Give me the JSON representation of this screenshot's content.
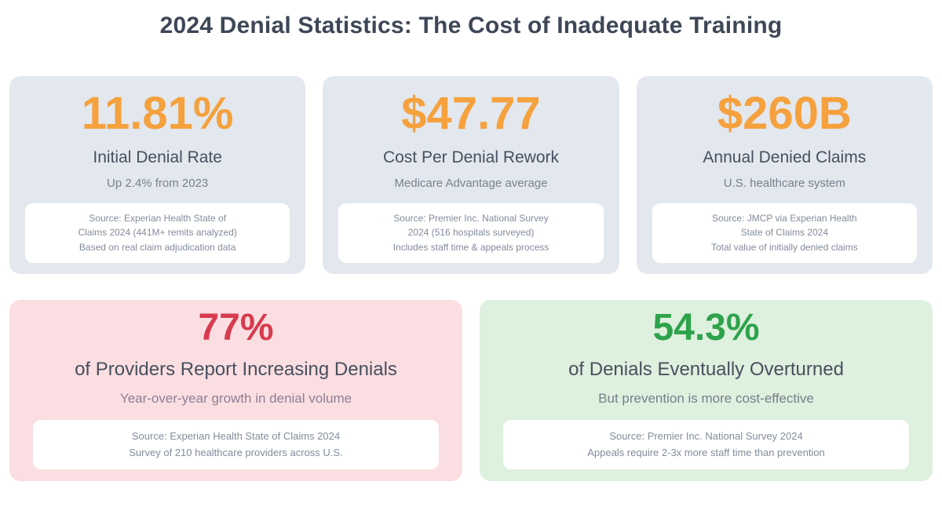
{
  "page": {
    "title": "2024 Denial Statistics: The Cost of Inadequate Training"
  },
  "colors": {
    "title_text": "#3E4757",
    "accent_orange": "#F5A13D",
    "accent_red": "#D73B4F",
    "accent_green": "#2EA34B",
    "stat_card_bg": "#E3E7EE",
    "red_card_bg": "#FBDEE1",
    "green_card_bg": "#DEF0DE",
    "source_box_bg": "#FFFFFF"
  },
  "stat_cards": [
    {
      "value": "11.81%",
      "label": "Initial Denial Rate",
      "subtitle": "Up 2.4% from 2023",
      "source_line1": "Source: Experian Health State of",
      "source_line2": "Claims 2024 (441M+ remits analyzed)",
      "source_line3": "Based on real claim adjudication data"
    },
    {
      "value": "$47.77",
      "label": "Cost Per Denial Rework",
      "subtitle": "Medicare Advantage average",
      "source_line1": "Source: Premier Inc. National Survey",
      "source_line2": "2024 (516 hospitals surveyed)",
      "source_line3": "Includes staff time & appeals process"
    },
    {
      "value": "$260B",
      "label": "Annual Denied Claims",
      "subtitle": "U.S. healthcare system",
      "source_line1": "Source: JMCP via Experian Health",
      "source_line2": "State of Claims 2024",
      "source_line3": "Total value of initially denied claims"
    }
  ],
  "highlight_cards": [
    {
      "value": "77%",
      "label": "of Providers Report Increasing Denials",
      "subtitle": "Year-over-year growth in denial volume",
      "source_line1": "Source: Experian Health State of Claims 2024",
      "source_line2": "Survey of 210 healthcare providers across U.S."
    },
    {
      "value": "54.3%",
      "label": "of Denials Eventually Overturned",
      "subtitle": "But prevention is more cost-effective",
      "source_line1": "Source: Premier Inc. National Survey 2024",
      "source_line2": "Appeals require 2-3x more staff time than prevention"
    }
  ]
}
